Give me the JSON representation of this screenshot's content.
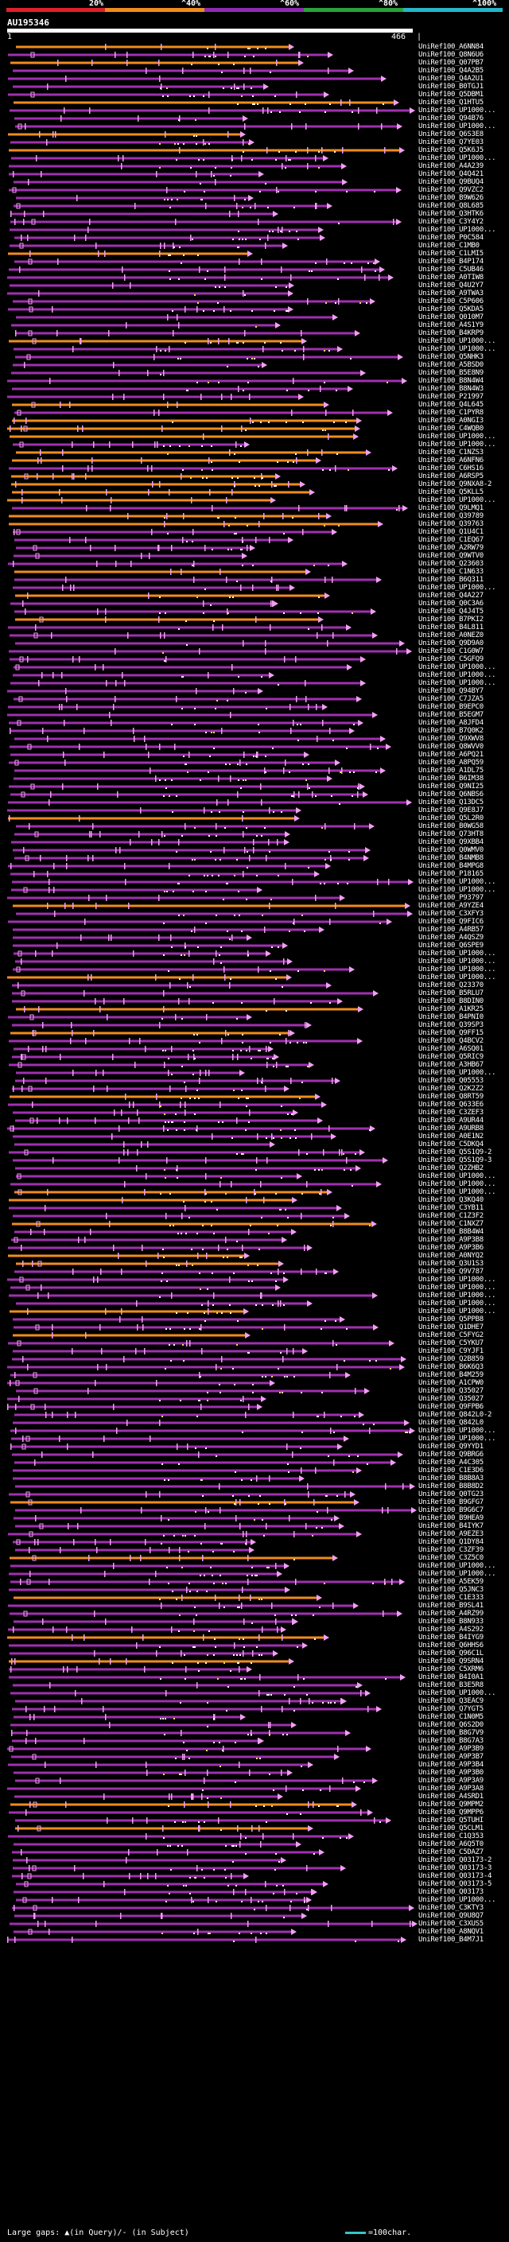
{
  "legend": {
    "labels": [
      "20%",
      "^40%",
      "^60%",
      "^80%",
      "^100%"
    ],
    "colors": [
      "#e0202b",
      "#f08c1e",
      "#8f2bb3",
      "#2aa33a",
      "#25b6c9"
    ]
  },
  "query": {
    "name": "AU195346",
    "start": "1",
    "end": "466",
    "tick_mark": "|"
  },
  "colors": {
    "purple": "#a030b0",
    "orange": "#f08c1e",
    "marker_pink": "#f0a0f0",
    "marker_yellow": "#f0e050",
    "scale": "#30c8c8"
  },
  "hits": [
    "UniRef100_A6NN84",
    "UniRef100_Q8N6U6",
    "UniRef100_Q07PB7",
    "UniRef100_Q4A2B5",
    "UniRef100_Q4A2U1",
    "UniRef100_B0TGJ1",
    "UniRef100_Q5DBM1",
    "UniRef100_Q1HTU5",
    "UniRef100_UP1000...",
    "UniRef100_Q94B76",
    "UniRef100_UP1000...",
    "UniRef100_Q6S3E8",
    "UniRef100_Q7YE03",
    "UniRef100_Q5K6J5",
    "UniRef100_UP1000...",
    "UniRef100_A4A239",
    "UniRef100_Q4Q421",
    "UniRef100_Q9BUQ4",
    "UniRef100_Q9VZC2",
    "UniRef100_B9W626",
    "UniRef100_Q8L685",
    "UniRef100_Q3HTK6",
    "UniRef100_C3Y4Y2",
    "UniRef100_UP1000...",
    "UniRef100_P0C584",
    "UniRef100_C1MB0",
    "UniRef100_C1LMI5",
    "UniRef100_B4P174",
    "UniRef100_C5UB46",
    "UniRef100_A0TIW8",
    "UniRef100_Q4U2Y7",
    "UniRef100_A9TWA3",
    "UniRef100_C5P606",
    "UniRef100_Q5KDA5",
    "UniRef100_Q010M7",
    "UniRef100_A4S1Y9",
    "UniRef100_B4KRP9",
    "UniRef100_UP1000...",
    "UniRef100_UP1000...",
    "UniRef100_Q5NHK3",
    "UniRef100_A5BSD0",
    "UniRef100_B5E8N9",
    "UniRef100_B8N4W4",
    "UniRef100_B8N4W3",
    "UniRef100_P21997",
    "UniRef100_Q4L645",
    "UniRef100_C1PYR8",
    "UniRef100_A0NGI3",
    "UniRef100_C4WQB0",
    "UniRef100_UP1000...",
    "UniRef100_UP1000...",
    "UniRef100_C1NZS3",
    "UniRef100_A6NFN6",
    "UniRef100_C6HS16",
    "UniRef100_A6RSP5",
    "UniRef100_Q9NXA8-2",
    "UniRef100_Q5KLL5",
    "UniRef100_UP1000...",
    "UniRef100_Q9LMQ1",
    "UniRef100_Q39789",
    "UniRef100_Q39763",
    "UniRef100_Q1U4C1",
    "UniRef100_C1EQ67",
    "UniRef100_A2RW79",
    "UniRef100_Q9WTV0",
    "UniRef100_Q23603",
    "UniRef100_C1N633",
    "UniRef100_B6Q311",
    "UniRef100_UP1000...",
    "UniRef100_Q4A227",
    "UniRef100_Q0C3A6",
    "UniRef100_Q4J4T5",
    "UniRef100_B7PKI2",
    "UniRef100_B4L811",
    "UniRef100_A0NEZ0",
    "UniRef100_Q9D9A0",
    "UniRef100_C1G0W7",
    "UniRef100_C5GFQ9",
    "UniRef100_UP1000...",
    "UniRef100_UP1000...",
    "UniRef100_UP1000...",
    "UniRef100_Q94BY7",
    "UniRef100_C7JZA5",
    "UniRef100_B9EPC0",
    "UniRef100_B5EGM7",
    "UniRef100_A8JFD4",
    "UniRef100_B7Q0K2",
    "UniRef100_Q9XWV8",
    "UniRef100_Q8WVV0",
    "UniRef100_A6PQ21",
    "UniRef100_A8PQ59",
    "UniRef100_A1DL75",
    "UniRef100_B6IM38",
    "UniRef100_Q9NI25",
    "UniRef100_Q6NBS6",
    "UniRef100_Q13DC5",
    "UniRef100_Q9E8J7",
    "UniRef100_Q5L2R0",
    "UniRef100_B0WG58",
    "UniRef100_Q73HT8",
    "UniRef100_Q9XBB4",
    "UniRef100_Q0WMV0",
    "UniRef100_B4NMB8",
    "UniRef100_B4MPG8",
    "UniRef100_P18165",
    "UniRef100_UP1000...",
    "UniRef100_UP1000...",
    "UniRef100_P93797",
    "UniRef100_A9YZE4",
    "UniRef100_C3XFY3",
    "UniRef100_Q9FIC6",
    "UniRef100_A4RB57",
    "UniRef100_A4QSZ9",
    "UniRef100_Q6SPE9",
    "UniRef100_UP1000...",
    "UniRef100_UP1000...",
    "UniRef100_UP1000...",
    "UniRef100_UP1000...",
    "UniRef100_Q23370",
    "UniRef100_B5RLU7",
    "UniRef100_B8DIN0",
    "UniRef100_A1KR25",
    "UniRef100_B4PNI0",
    "UniRef100_Q39SP3",
    "UniRef100_Q9FF15",
    "UniRef100_Q4BCV2",
    "UniRef100_A6SQ01",
    "UniRef100_Q5RIC9",
    "UniRef100_A3HB67",
    "UniRef100_UP1000...",
    "UniRef100_Q05553",
    "UniRef100_Q2K2Z2",
    "UniRef100_Q8RT59",
    "UniRef100_Q633E6",
    "UniRef100_C3ZEF3",
    "UniRef100_A9UR44",
    "UniRef100_A9URB8",
    "UniRef100_A0E1N2",
    "UniRef100_C5DKQ4",
    "UniRef100_Q5S1Q9-2",
    "UniRef100_Q5S1Q9-3",
    "UniRef100_Q2ZHB2",
    "UniRef100_UP1000...",
    "UniRef100_UP1000...",
    "UniRef100_UP1000...",
    "UniRef100_Q3KQ40",
    "UniRef100_C3YB11",
    "UniRef100_C1Z3F2",
    "UniRef100_C1NXZ7",
    "UniRef100_B8B4W4",
    "UniRef100_A9P3B8",
    "UniRef100_A9P3B6",
    "UniRef100_A0NYQ2",
    "UniRef100_Q3U1S3",
    "UniRef100_Q9V787",
    "UniRef100_UP1000...",
    "UniRef100_UP1000...",
    "UniRef100_UP1000...",
    "UniRef100_UP1000...",
    "UniRef100_UP1000...",
    "UniRef100_Q5PPB8",
    "UniRef100_Q1DHE7",
    "UniRef100_C5FYG2",
    "UniRef100_C5YKU7",
    "UniRef100_C9YJF1",
    "UniRef100_Q2B859",
    "UniRef100_B6K6Q3",
    "UniRef100_B4M259",
    "UniRef100_A1CPW0",
    "UniRef100_Q35027",
    "UniRef100_Q35027",
    "UniRef100_Q9FPB6",
    "UniRef100_Q842L0-2",
    "UniRef100_Q842L0",
    "UniRef100_UP1000...",
    "UniRef100_UP1000...",
    "UniRef100_Q9YYD1",
    "UniRef100_Q9BRG6",
    "UniRef100_A4C305",
    "UniRef100_C1E3D6",
    "UniRef100_B8B8A3",
    "UniRef100_B8B8D2",
    "UniRef100_Q0TG23",
    "UniRef100_B9GFG7",
    "UniRef100_B9G6C7",
    "UniRef100_B9HEA9",
    "UniRef100_B4IYK7",
    "UniRef100_A9EZE3",
    "UniRef100_Q1DY84",
    "UniRef100_C3ZF39",
    "UniRef100_C3Z5C0",
    "UniRef100_UP1000...",
    "UniRef100_UP1000...",
    "UniRef100_A5EK59",
    "UniRef100_Q5JNC3",
    "UniRef100_C1E333",
    "UniRef100_B9SL41",
    "UniRef100_A4RZ99",
    "UniRef100_B8N933",
    "UniRef100_A4S292",
    "UniRef100_B4IYG9",
    "UniRef100_Q6HHS6",
    "UniRef100_Q96C1L",
    "UniRef100_Q9SRN4",
    "UniRef100_C5XRM6",
    "UniRef100_B4I0A1",
    "UniRef100_B3E5R8",
    "UniRef100_UP1000...",
    "UniRef100_Q3EAC9",
    "UniRef100_Q7YGT5",
    "UniRef100_C1N0M5",
    "UniRef100_Q6S2D0",
    "UniRef100_B8G7V9",
    "UniRef100_B8G7A3",
    "UniRef100_A9P3B9",
    "UniRef100_A9P3B7",
    "UniRef100_A9P3B4",
    "UniRef100_A9P3B0",
    "UniRef100_A9P3A9",
    "UniRef100_A9P3A8",
    "UniRef100_A4SRD1",
    "UniRef100_Q9MPM2",
    "UniRef100_Q9MPP6",
    "UniRef100_Q5TUHI",
    "UniRef100_Q5CLM1",
    "UniRef100_C1Q353",
    "UniRef100_A6Q5T0",
    "UniRef100_C5DAZ7",
    "UniRef100_Q03173-2",
    "UniRef100_Q03173-3",
    "UniRef100_Q03173-4",
    "UniRef100_Q03173-5",
    "UniRef100_Q03173",
    "UniRef100_UP1000...",
    "UniRef100_C3KTY3",
    "UniRef100_Q9U8Q7",
    "UniRef100_C3XUS5",
    "UniRef100_A8NQV1",
    "UniRef100_B4M7J1"
  ],
  "footer": {
    "gap_text": "Large gaps: ▲(in Query)/- (in Subject)",
    "scale_text": "=100char."
  }
}
